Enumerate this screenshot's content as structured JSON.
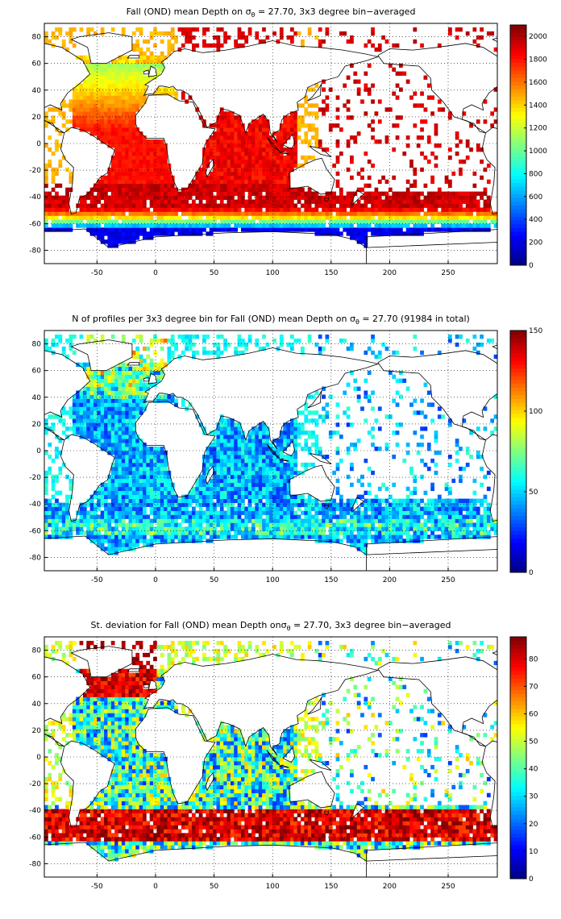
{
  "chart_data": [
    {
      "type": "heatmap",
      "title_pre": "Fall (OND) mean Depth on ",
      "title_sym": "σ",
      "title_sub": "θ",
      "title_post": " = 27.70, 3x3 degree bin−averaged",
      "xlim": [
        -95,
        292
      ],
      "ylim": [
        -90,
        90
      ],
      "xticks": [
        -50,
        0,
        50,
        100,
        150,
        200,
        250
      ],
      "yticks": [
        80,
        60,
        40,
        20,
        0,
        -20,
        -40,
        -60,
        -80
      ],
      "colorbar": {
        "min": 0,
        "max": 2100,
        "ticks": [
          0,
          200,
          400,
          600,
          800,
          1000,
          1200,
          1400,
          1600,
          1800,
          2000
        ]
      },
      "colormap": "jet",
      "grid": true,
      "field": "depth"
    },
    {
      "type": "heatmap",
      "title_pre": "N of profiles per 3x3 degree bin for Fall (OND) mean Depth on ",
      "title_sym": "σ",
      "title_sub": "θ",
      "title_post": " = 27.70 (91984 in total)",
      "xlim": [
        -95,
        292
      ],
      "ylim": [
        -90,
        90
      ],
      "xticks": [
        -50,
        0,
        50,
        100,
        150,
        200,
        250
      ],
      "yticks": [
        80,
        60,
        40,
        20,
        0,
        -20,
        -40,
        -60,
        -80
      ],
      "colorbar": {
        "min": 0,
        "max": 150,
        "ticks": [
          0,
          50,
          100,
          150
        ]
      },
      "colormap": "jet",
      "grid": true,
      "field": "count"
    },
    {
      "type": "heatmap",
      "title_pre": "St. deviation for Fall (OND) mean Depth on",
      "title_sym": "σ",
      "title_sub": "θ",
      "title_post": " = 27.70, 3x3 degree bin−averaged",
      "xlim": [
        -95,
        292
      ],
      "ylim": [
        -90,
        90
      ],
      "xticks": [
        -50,
        0,
        50,
        100,
        150,
        200,
        250
      ],
      "yticks": [
        80,
        60,
        40,
        20,
        0,
        -20,
        -40,
        -60,
        -80
      ],
      "colorbar": {
        "min": 0,
        "max": 88,
        "ticks": [
          0,
          10,
          20,
          30,
          40,
          50,
          60,
          70,
          80
        ]
      },
      "colormap": "jet",
      "grid": true,
      "field": "std"
    }
  ]
}
